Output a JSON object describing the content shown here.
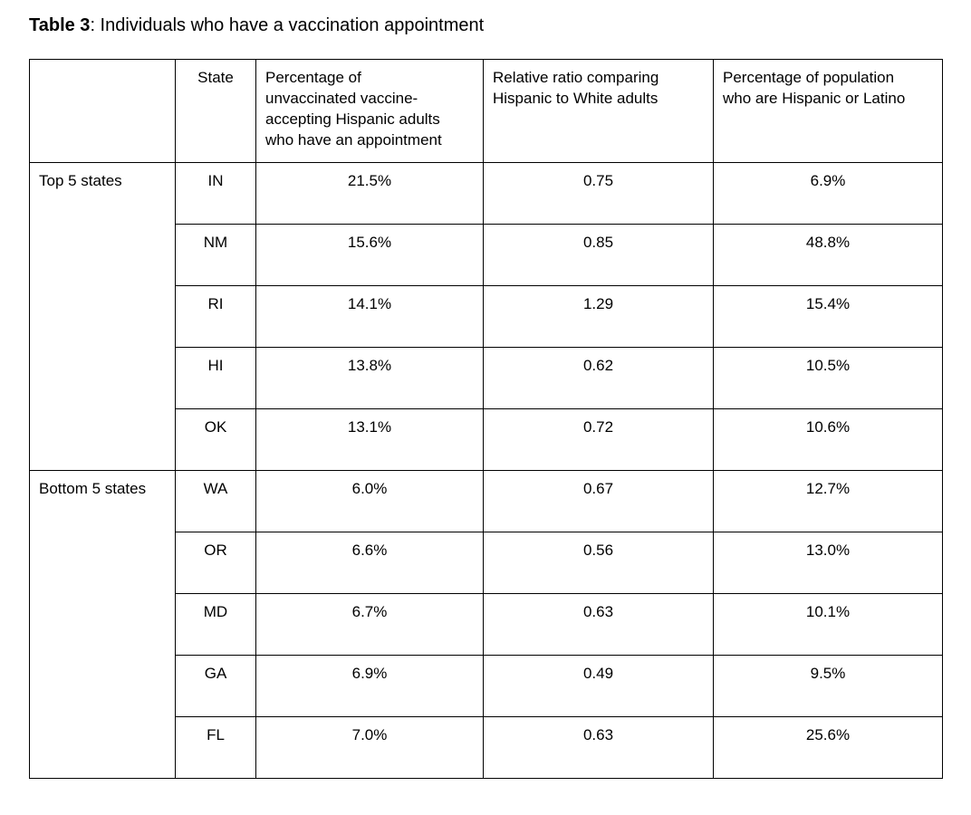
{
  "caption": {
    "bold": "Table 3",
    "rest": ": Individuals who have a vaccination appointment"
  },
  "table": {
    "headers": {
      "group": "",
      "state": "State",
      "pct_appointment": "Percentage of\nunvaccinated vaccine-\naccepting Hispanic adults\nwho have an appointment",
      "relative_ratio": "Relative ratio comparing\nHispanic to White adults",
      "pct_population": "Percentage of population\nwho are Hispanic or Latino"
    },
    "groups": [
      {
        "label": "Top 5 states",
        "rows": [
          {
            "state": "IN",
            "pct_appointment": "21.5%",
            "relative_ratio": "0.75",
            "pct_population": "6.9%"
          },
          {
            "state": "NM",
            "pct_appointment": "15.6%",
            "relative_ratio": "0.85",
            "pct_population": "48.8%"
          },
          {
            "state": "RI",
            "pct_appointment": "14.1%",
            "relative_ratio": "1.29",
            "pct_population": "15.4%"
          },
          {
            "state": "HI",
            "pct_appointment": "13.8%",
            "relative_ratio": "0.62",
            "pct_population": "10.5%"
          },
          {
            "state": "OK",
            "pct_appointment": "13.1%",
            "relative_ratio": "0.72",
            "pct_population": "10.6%"
          }
        ]
      },
      {
        "label": "Bottom 5 states",
        "rows": [
          {
            "state": "WA",
            "pct_appointment": "6.0%",
            "relative_ratio": "0.67",
            "pct_population": "12.7%"
          },
          {
            "state": "OR",
            "pct_appointment": "6.6%",
            "relative_ratio": "0.56",
            "pct_population": "13.0%"
          },
          {
            "state": "MD",
            "pct_appointment": "6.7%",
            "relative_ratio": "0.63",
            "pct_population": "10.1%"
          },
          {
            "state": "GA",
            "pct_appointment": "6.9%",
            "relative_ratio": "0.49",
            "pct_population": "9.5%"
          },
          {
            "state": "FL",
            "pct_appointment": "7.0%",
            "relative_ratio": "0.63",
            "pct_population": "25.6%"
          }
        ]
      }
    ]
  },
  "chart_data": {
    "type": "table",
    "title": "Table 3: Individuals who have a vaccination appointment",
    "columns": [
      "",
      "State",
      "Percentage of unvaccinated vaccine-accepting Hispanic adults who have an appointment",
      "Relative ratio comparing Hispanic to White adults",
      "Percentage of population who are Hispanic or Latino"
    ],
    "rows": [
      [
        "Top 5 states",
        "IN",
        "21.5%",
        "0.75",
        "6.9%"
      ],
      [
        "Top 5 states",
        "NM",
        "15.6%",
        "0.85",
        "48.8%"
      ],
      [
        "Top 5 states",
        "RI",
        "14.1%",
        "1.29",
        "15.4%"
      ],
      [
        "Top 5 states",
        "HI",
        "13.8%",
        "0.62",
        "10.5%"
      ],
      [
        "Top 5 states",
        "OK",
        "13.1%",
        "0.72",
        "10.6%"
      ],
      [
        "Bottom 5 states",
        "WA",
        "6.0%",
        "0.67",
        "12.7%"
      ],
      [
        "Bottom 5 states",
        "OR",
        "6.6%",
        "0.56",
        "13.0%"
      ],
      [
        "Bottom 5 states",
        "MD",
        "6.7%",
        "0.63",
        "10.1%"
      ],
      [
        "Bottom 5 states",
        "GA",
        "6.9%",
        "0.49",
        "9.5%"
      ],
      [
        "Bottom 5 states",
        "FL",
        "7.0%",
        "0.63",
        "25.6%"
      ]
    ]
  }
}
